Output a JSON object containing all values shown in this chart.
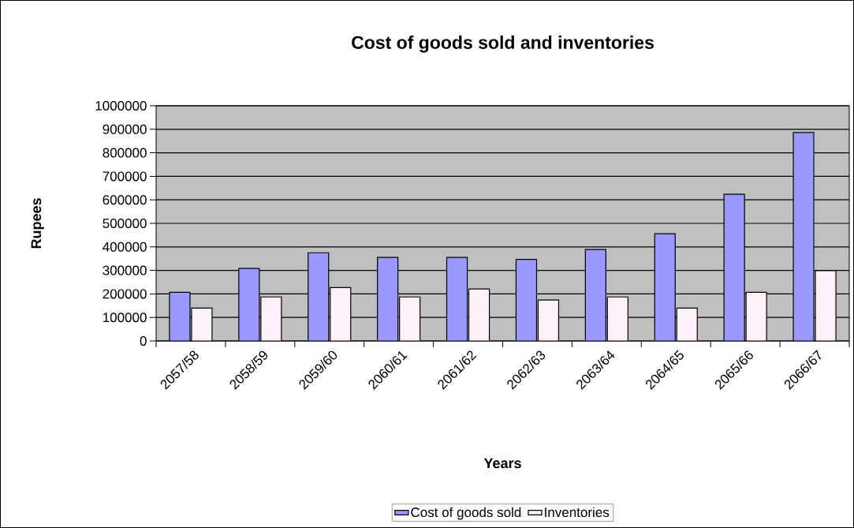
{
  "chart_data": {
    "type": "bar",
    "title": "Cost of goods sold and inventories",
    "xlabel": "Years",
    "ylabel": "Rupees",
    "categories": [
      "2057/58",
      "2058/59",
      "2059/60",
      "2060/61",
      "2061/62",
      "2062/63",
      "2063/64",
      "2064/65",
      "2065/66",
      "2066/67"
    ],
    "series": [
      {
        "name": "Cost of goods sold",
        "color": "#9999ff",
        "values": [
          207000,
          308000,
          375000,
          355000,
          355000,
          347000,
          389000,
          456000,
          624000,
          886000
        ]
      },
      {
        "name": "Inventories",
        "color": "#fff0fa",
        "values": [
          140000,
          187000,
          227000,
          187000,
          221000,
          174000,
          187000,
          140000,
          207000,
          299000
        ]
      }
    ],
    "ylim": [
      0,
      1000000
    ],
    "yticks": [
      0,
      100000,
      200000,
      300000,
      400000,
      500000,
      600000,
      700000,
      800000,
      900000,
      1000000
    ],
    "grid": "y",
    "legend": "bottom"
  }
}
